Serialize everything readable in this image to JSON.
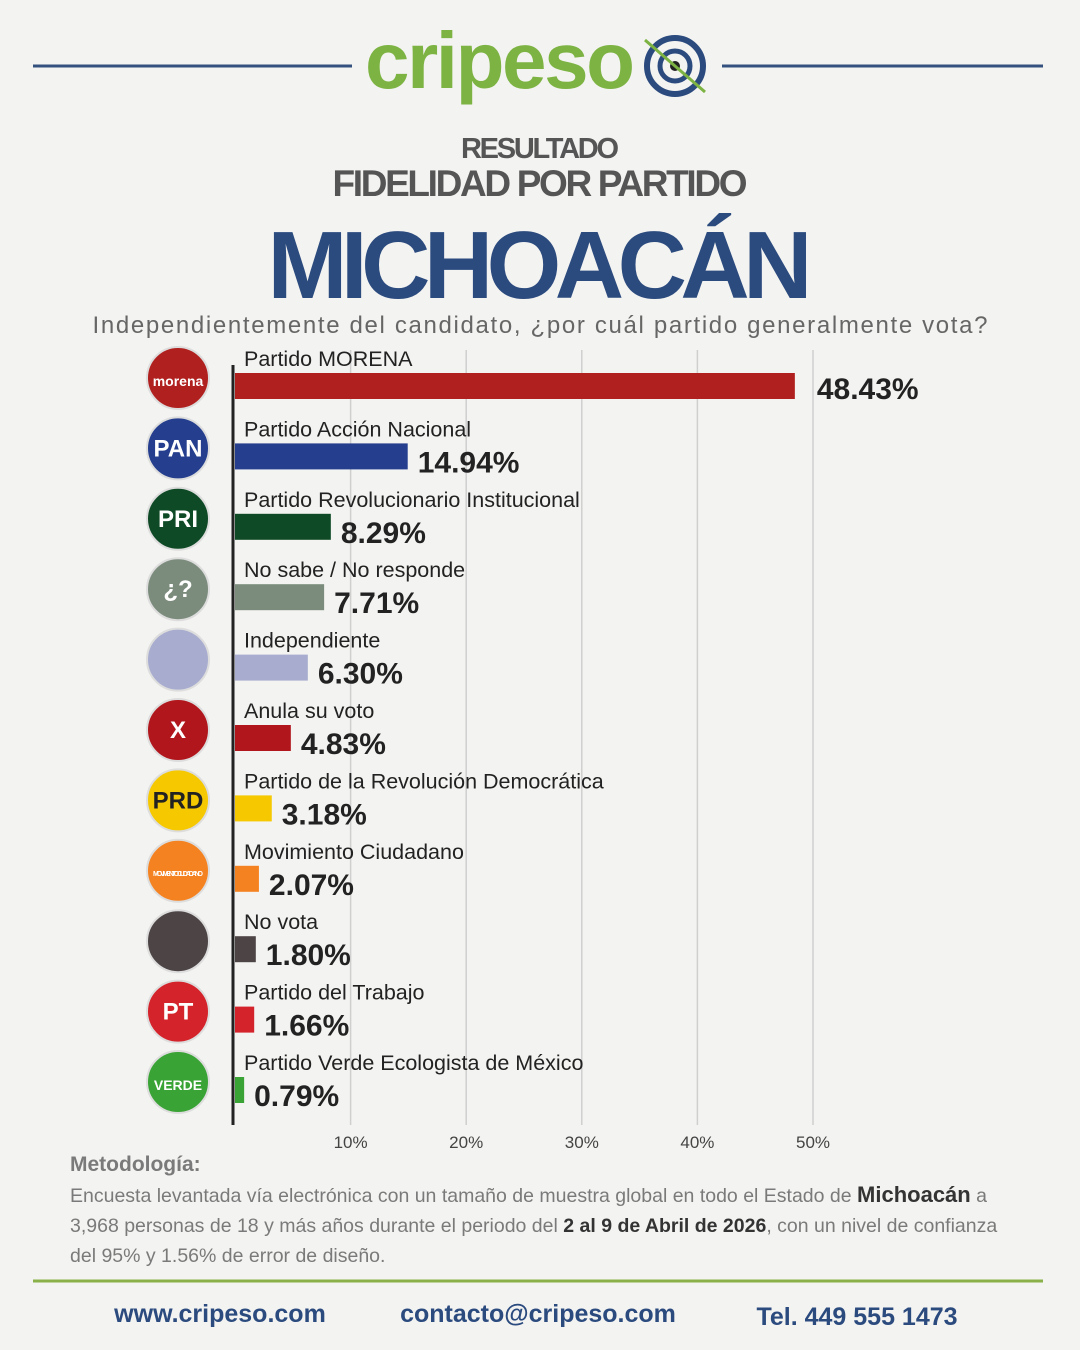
{
  "header": {
    "logo": "cripeso",
    "kicker": "RESULTADO",
    "subtitle": "FIDELIDAD POR PARTIDO",
    "title": "MICHOACÁN"
  },
  "chart_data": {
    "type": "hbar",
    "title": "Independientemente del candidato, ¿por cuál partido generalmente vota?",
    "categories": [
      "Partido MORENA",
      "Partido Acción Nacional",
      "Partido Revolucionario Institucional",
      "No sabe / No responde",
      "Independiente",
      "Anula su voto",
      "Partido de la Revolución Democrática",
      "Movimiento Ciudadano",
      "No vota",
      "Partido del Trabajo",
      "Partido Verde Ecologista de México"
    ],
    "values": [
      48.43,
      14.94,
      8.29,
      7.71,
      6.3,
      4.83,
      3.18,
      2.07,
      1.8,
      1.66,
      0.79
    ],
    "value_labels": [
      "48.43%",
      "14.94%",
      "8.29%",
      "7.71%",
      "6.30%",
      "4.83%",
      "3.18%",
      "2.07%",
      "1.80%",
      "1.66%",
      "0.79%"
    ],
    "colors": [
      "#b0201e",
      "#253f8e",
      "#0f4a26",
      "#7b8b7c",
      "#a8adcf",
      "#b0161c",
      "#f5c800",
      "#f58220",
      "#4d4545",
      "#d4232a",
      "#3aa335"
    ],
    "icon_labels": [
      "morena",
      "PAN",
      "PRI",
      "¿?",
      null,
      "X",
      "PRD",
      "MOVIMIENTO CIUDADANO",
      null,
      "PT",
      "VERDE"
    ],
    "xlim": [
      0,
      50
    ],
    "xticks": [
      {
        "value": 10,
        "label": "10%"
      },
      {
        "value": 20,
        "label": "20%"
      },
      {
        "value": 30,
        "label": "30%"
      },
      {
        "value": 40,
        "label": "40%"
      },
      {
        "value": 50,
        "label": "50%"
      }
    ],
    "grid": true
  },
  "methodology": {
    "title": "Metodología:",
    "text": [
      "Encuesta levantada vía electrónica con un tamaño de muestra global en todo el Estado de ",
      "Michoacán",
      " a 3,968 personas de 18 y más años durante el periodo del ",
      "2 al 9 de Abril de 2026",
      ", con un nivel de confianza del 95% y 1.56% de error de diseño."
    ]
  },
  "footer": {
    "web": "www.cripeso.com",
    "email": "contacto@cripeso.com",
    "phone": "Tel. 449 555 1473"
  }
}
